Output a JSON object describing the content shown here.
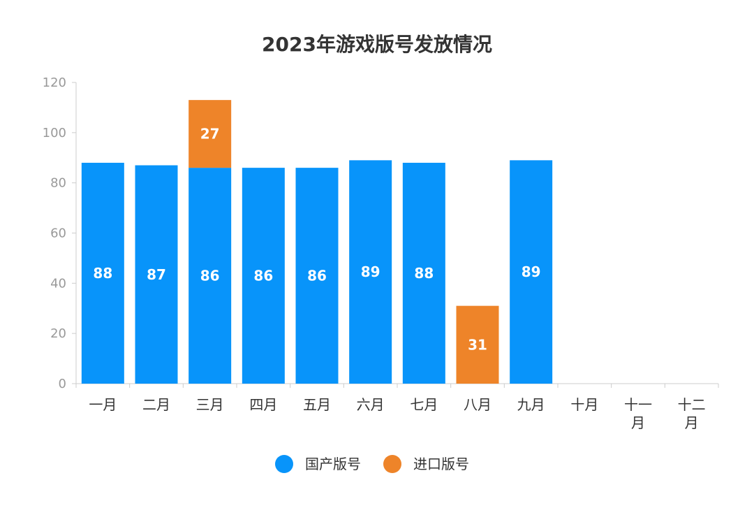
{
  "chart_data": {
    "type": "bar",
    "stacked": true,
    "title": "2023年游戏版号发放情况",
    "categories": [
      "一月",
      "二月",
      "三月",
      "四月",
      "五月",
      "六月",
      "七月",
      "八月",
      "九月",
      "十月",
      "十一月",
      "十二月"
    ],
    "series": [
      {
        "name": "国产版号",
        "color": "#0894fa",
        "values": [
          88,
          87,
          86,
          86,
          86,
          89,
          88,
          null,
          89,
          null,
          null,
          null
        ]
      },
      {
        "name": "进口版号",
        "color": "#ee8429",
        "values": [
          null,
          null,
          27,
          null,
          null,
          null,
          null,
          31,
          null,
          null,
          null,
          null
        ]
      }
    ],
    "ylim": [
      0,
      120
    ],
    "yticks": [
      0,
      20,
      40,
      60,
      80,
      100,
      120
    ],
    "grid": false,
    "legend": "bottom-center",
    "axis_color": "#cccccc"
  }
}
